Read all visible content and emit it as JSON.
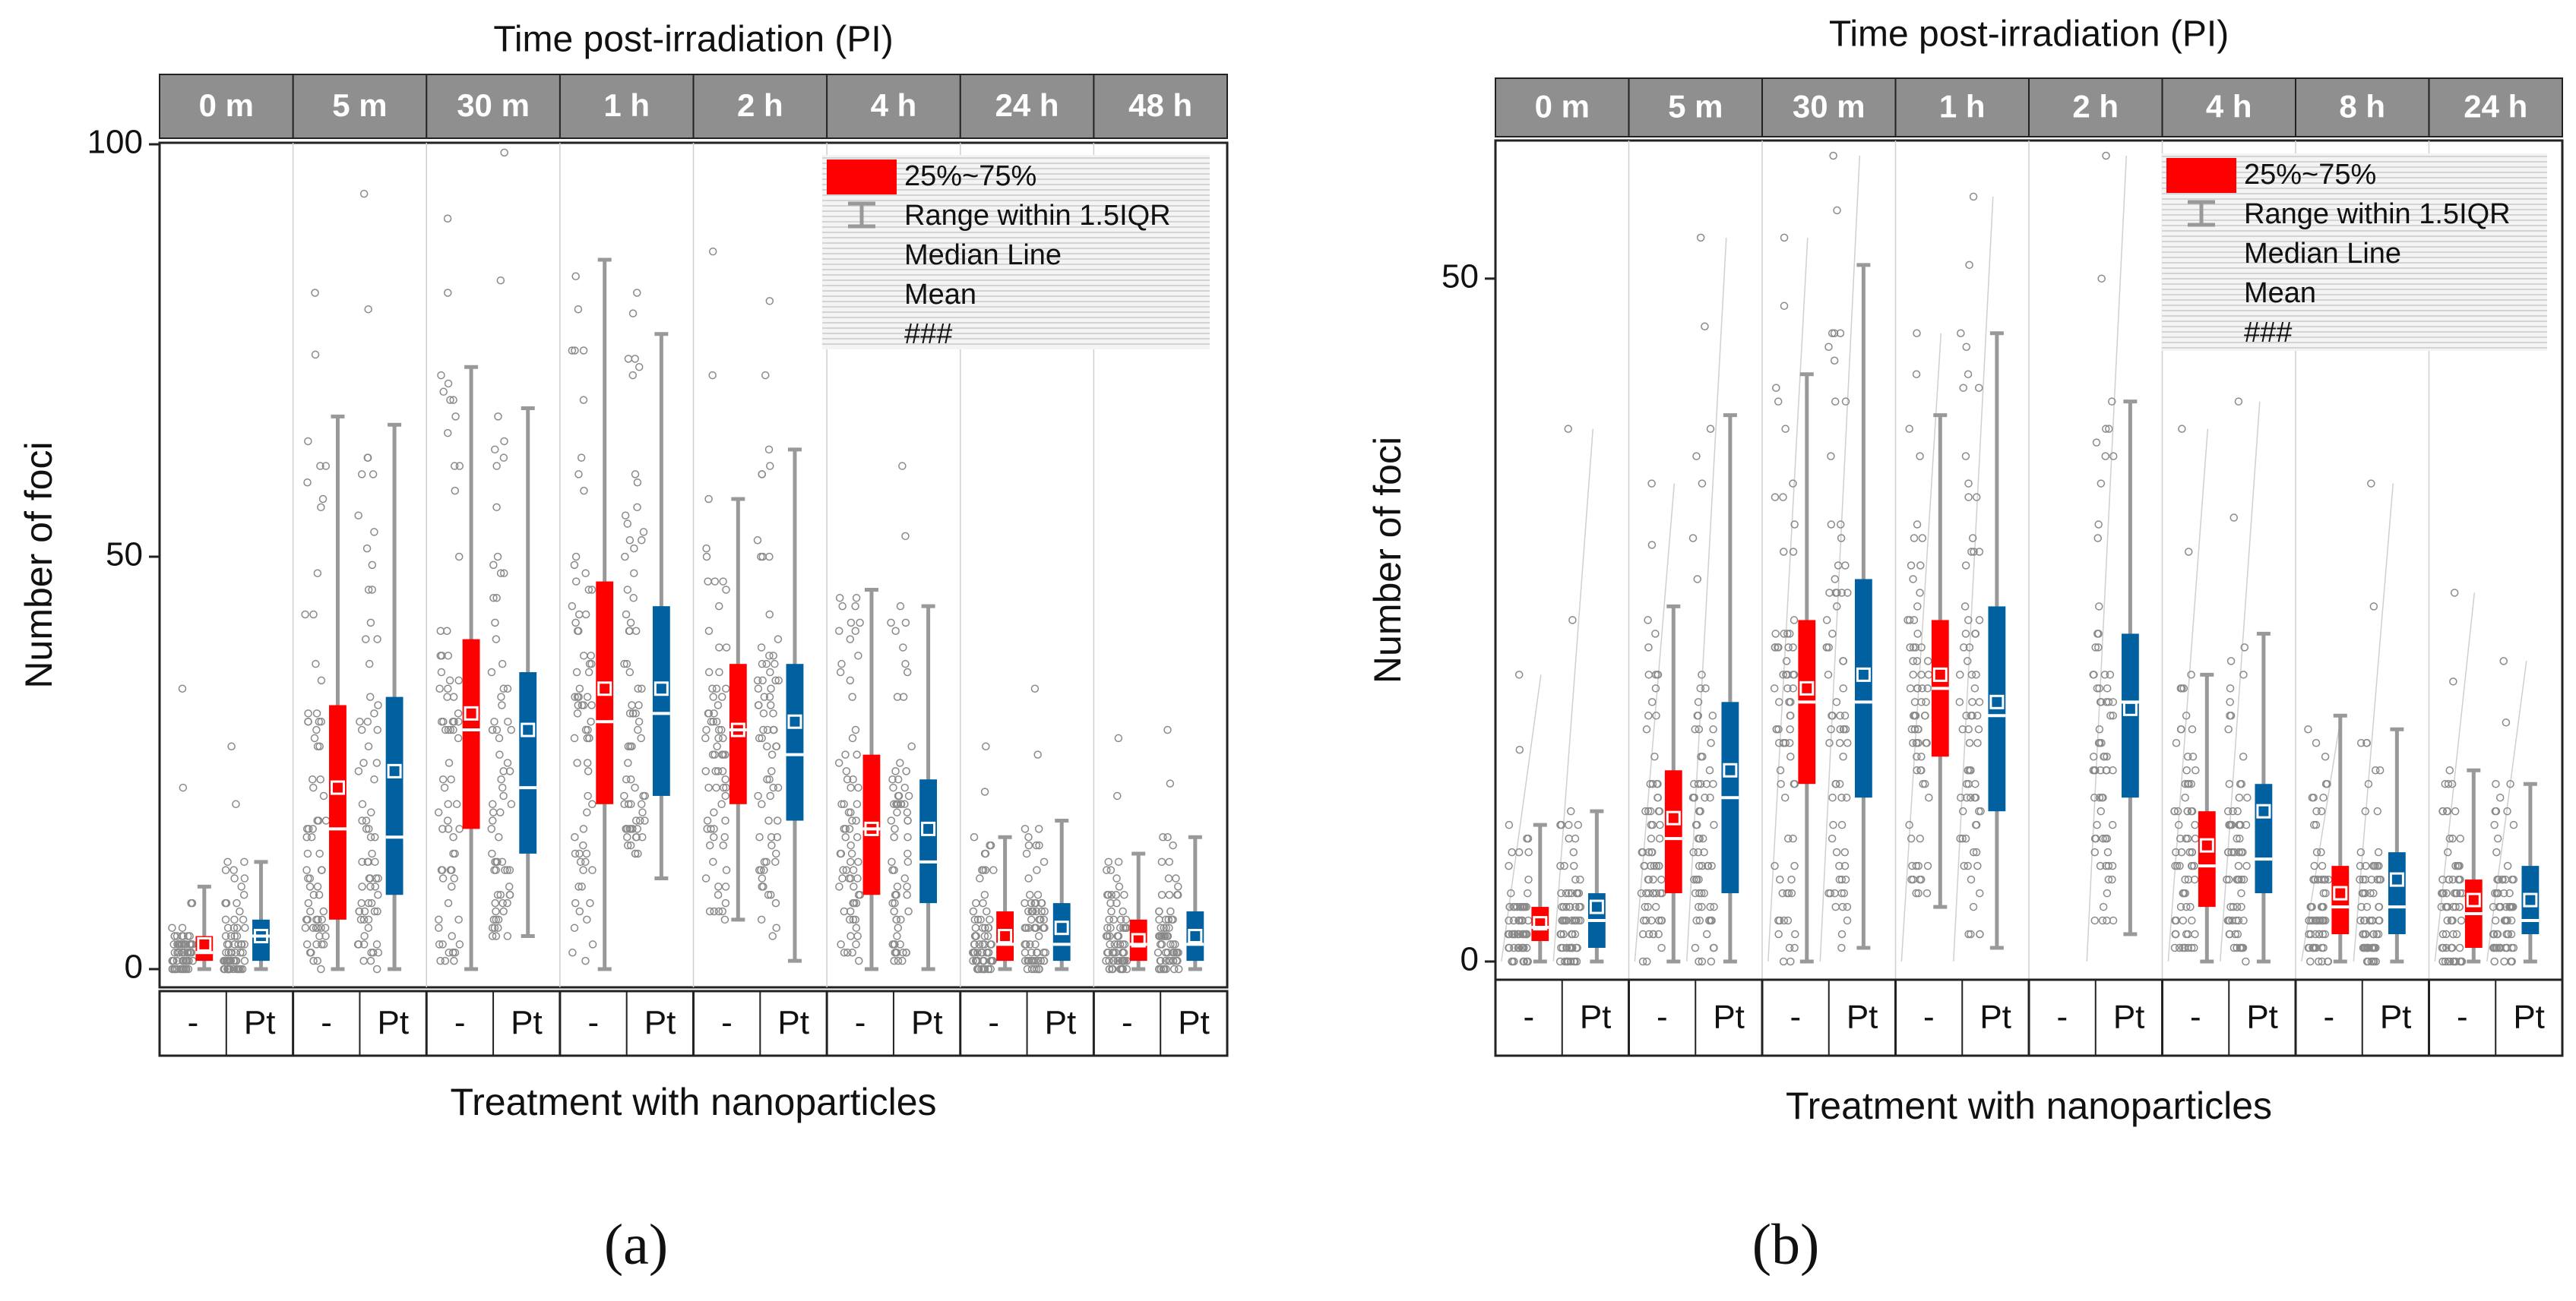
{
  "figure": {
    "caption_a": "(a)",
    "caption_b": "(b)"
  },
  "legend": {
    "box": "25%~75%",
    "whisker": "Range within 1.5IQR",
    "median": "Median Line",
    "mean": "Mean",
    "extra": "###"
  },
  "colors": {
    "control": "#ff0000",
    "pt": "#0060a0",
    "whisker": "#999999",
    "header_bg": "#8f8f8f",
    "header_text": "#ffffff"
  },
  "chart_data": [
    {
      "type": "box",
      "panel": "a",
      "top_title": "Time post-irradiation (PI)",
      "xlabel": "Treatment with nanoparticles",
      "ylabel": "Number of foci",
      "ylim": [
        0,
        100
      ],
      "yticks": [
        0,
        50,
        100
      ],
      "timepoints": [
        "0 m",
        "5 m",
        "30 m",
        "1 h",
        "2 h",
        "4 h",
        "24 h",
        "48 h"
      ],
      "treatments": [
        "-",
        "Pt"
      ],
      "series": [
        {
          "name": "-",
          "color": "#ff0000",
          "boxes": [
            {
              "q1": 1,
              "q3": 4,
              "median": 2,
              "mean": 3,
              "wlo": 0,
              "whi": 10,
              "outmax": 34
            },
            {
              "q1": 6,
              "q3": 32,
              "median": 17,
              "mean": 22,
              "wlo": 0,
              "whi": 67,
              "outmax": 82
            },
            {
              "q1": 17,
              "q3": 40,
              "median": 29,
              "mean": 31,
              "wlo": 0,
              "whi": 73,
              "outmax": 91
            },
            {
              "q1": 20,
              "q3": 47,
              "median": 30,
              "mean": 34,
              "wlo": 0,
              "whi": 86,
              "outmax": 86
            },
            {
              "q1": 20,
              "q3": 37,
              "median": 29,
              "mean": 29,
              "wlo": 6,
              "whi": 57,
              "outmax": 87
            },
            {
              "q1": 9,
              "q3": 26,
              "median": 17,
              "mean": 17,
              "wlo": 0,
              "whi": 46,
              "outmax": 46
            },
            {
              "q1": 1,
              "q3": 7,
              "median": 3,
              "mean": 4,
              "wlo": 0,
              "whi": 16,
              "outmax": 27
            },
            {
              "q1": 1,
              "q3": 6,
              "median": 3,
              "mean": 3.5,
              "wlo": 0,
              "whi": 14,
              "outmax": 28
            }
          ]
        },
        {
          "name": "Pt",
          "color": "#0060a0",
          "boxes": [
            {
              "q1": 1,
              "q3": 6,
              "median": 4,
              "mean": 4,
              "wlo": 0,
              "whi": 13,
              "outmax": 27
            },
            {
              "q1": 9,
              "q3": 33,
              "median": 16,
              "mean": 24,
              "wlo": 0,
              "whi": 66,
              "outmax": 94
            },
            {
              "q1": 14,
              "q3": 36,
              "median": 22,
              "mean": 29,
              "wlo": 4,
              "whi": 68,
              "outmax": 99
            },
            {
              "q1": 21,
              "q3": 44,
              "median": 31,
              "mean": 34,
              "wlo": 11,
              "whi": 77,
              "outmax": 82
            },
            {
              "q1": 18,
              "q3": 37,
              "median": 26,
              "mean": 30,
              "wlo": 1,
              "whi": 63,
              "outmax": 81
            },
            {
              "q1": 8,
              "q3": 23,
              "median": 13,
              "mean": 17,
              "wlo": 0,
              "whi": 44,
              "outmax": 61
            },
            {
              "q1": 1,
              "q3": 8,
              "median": 3,
              "mean": 5,
              "wlo": 0,
              "whi": 18,
              "outmax": 34
            },
            {
              "q1": 1,
              "q3": 7,
              "median": 3,
              "mean": 4,
              "wlo": 0,
              "whi": 16,
              "outmax": 29
            }
          ]
        }
      ]
    },
    {
      "type": "box",
      "panel": "b",
      "top_title": "Time post-irradiation (PI)",
      "xlabel": "Treatment with nanoparticles",
      "ylabel": "Number of foci",
      "ylim": [
        0,
        60
      ],
      "yticks": [
        0,
        50
      ],
      "timepoints": [
        "0 m",
        "5 m",
        "30 m",
        "1 h",
        "2 h",
        "4 h",
        "8 h",
        "24 h"
      ],
      "treatments": [
        "-",
        "Pt"
      ],
      "series": [
        {
          "name": "-",
          "color": "#ff0000",
          "boxes": [
            {
              "q1": 1.5,
              "q3": 4,
              "median": 2.5,
              "mean": 2.8,
              "wlo": 0,
              "whi": 10,
              "outmax": 21
            },
            {
              "q1": 5,
              "q3": 14,
              "median": 9,
              "mean": 10.5,
              "wlo": 0,
              "whi": 26,
              "outmax": 35
            },
            {
              "q1": 13,
              "q3": 25,
              "median": 19,
              "mean": 20,
              "wlo": 0,
              "whi": 43,
              "outmax": 53
            },
            {
              "q1": 15,
              "q3": 25,
              "median": 20,
              "mean": 21,
              "wlo": 4,
              "whi": 40,
              "outmax": 46
            },
            null,
            {
              "q1": 4,
              "q3": 11,
              "median": 7,
              "mean": 8.5,
              "wlo": 0,
              "whi": 21,
              "outmax": 39
            },
            {
              "q1": 2,
              "q3": 7,
              "median": 4,
              "mean": 5,
              "wlo": 0,
              "whi": 18,
              "outmax": 18
            },
            {
              "q1": 1,
              "q3": 6,
              "median": 3.5,
              "mean": 4.5,
              "wlo": 0,
              "whi": 14,
              "outmax": 27
            }
          ]
        },
        {
          "name": "Pt",
          "color": "#0060a0",
          "boxes": [
            {
              "q1": 1,
              "q3": 5,
              "median": 3,
              "mean": 4,
              "wlo": 0,
              "whi": 11,
              "outmax": 39
            },
            {
              "q1": 5,
              "q3": 19,
              "median": 12,
              "mean": 14,
              "wlo": 0,
              "whi": 40,
              "outmax": 53
            },
            {
              "q1": 12,
              "q3": 28,
              "median": 19,
              "mean": 21,
              "wlo": 1,
              "whi": 51,
              "outmax": 59
            },
            {
              "q1": 11,
              "q3": 26,
              "median": 18,
              "mean": 19,
              "wlo": 1,
              "whi": 46,
              "outmax": 56
            },
            {
              "q1": 12,
              "q3": 24,
              "median": 19,
              "mean": 18.5,
              "wlo": 2,
              "whi": 41,
              "outmax": 59
            },
            {
              "q1": 5,
              "q3": 13,
              "median": 7.5,
              "mean": 11,
              "wlo": 0,
              "whi": 24,
              "outmax": 41
            },
            {
              "q1": 2,
              "q3": 8,
              "median": 4,
              "mean": 6,
              "wlo": 0,
              "whi": 17,
              "outmax": 35
            },
            {
              "q1": 2,
              "q3": 7,
              "median": 3,
              "mean": 4.5,
              "wlo": 0,
              "whi": 13,
              "outmax": 22
            }
          ]
        }
      ]
    }
  ]
}
